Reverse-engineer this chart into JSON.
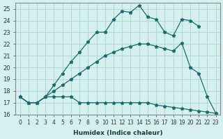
{
  "xlabel": "Humidex (Indice chaleur)",
  "ylabel": "",
  "bg_color": "#d6f0f0",
  "grid_color": "#b0d8d8",
  "line_color": "#1a6b6b",
  "xlim": [
    -0.5,
    23.5
  ],
  "ylim": [
    16,
    25.5
  ],
  "yticks": [
    16,
    17,
    18,
    19,
    20,
    21,
    22,
    23,
    24,
    25
  ],
  "xticks": [
    0,
    1,
    2,
    3,
    4,
    5,
    6,
    7,
    8,
    9,
    10,
    11,
    12,
    13,
    14,
    15,
    16,
    17,
    18,
    19,
    20,
    21,
    22,
    23
  ],
  "line1_x": [
    0,
    1,
    2,
    3,
    4,
    5,
    6,
    7,
    8,
    9,
    10,
    11,
    12,
    13,
    14,
    15,
    16,
    17,
    18,
    19,
    20,
    21,
    22,
    23
  ],
  "line1_y": [
    17.5,
    17.0,
    17.0,
    17.5,
    17.5,
    17.5,
    17.5,
    17.0,
    17.0,
    17.0,
    17.0,
    17.0,
    17.0,
    17.0,
    17.0,
    17.0,
    16.8,
    16.7,
    16.6,
    16.5,
    16.4,
    16.3,
    16.2,
    16.1
  ],
  "line2_x": [
    0,
    1,
    2,
    3,
    4,
    5,
    6,
    7,
    8,
    9,
    10,
    11,
    12,
    13,
    14,
    15,
    16,
    17,
    18,
    19,
    20,
    21,
    22,
    23
  ],
  "line2_y": [
    17.5,
    17.0,
    17.0,
    17.5,
    18.0,
    18.5,
    19.0,
    19.5,
    20.0,
    20.5,
    21.0,
    21.3,
    21.6,
    21.8,
    22.0,
    22.0,
    21.8,
    21.6,
    21.4,
    22.1,
    20.0,
    19.5,
    17.5,
    16.1
  ],
  "line3_x": [
    0,
    1,
    2,
    3,
    4,
    5,
    6,
    7,
    8,
    9,
    10,
    11,
    12,
    13,
    14,
    15,
    16,
    17,
    18,
    19,
    20,
    21,
    22,
    23
  ],
  "line3_y": [
    17.5,
    17.0,
    17.0,
    17.5,
    18.5,
    19.5,
    20.5,
    21.3,
    22.2,
    23.0,
    23.0,
    24.1,
    24.8,
    24.7,
    25.3,
    24.3,
    24.1,
    23.0,
    22.7,
    24.1,
    24.0,
    23.5,
    null,
    null
  ]
}
